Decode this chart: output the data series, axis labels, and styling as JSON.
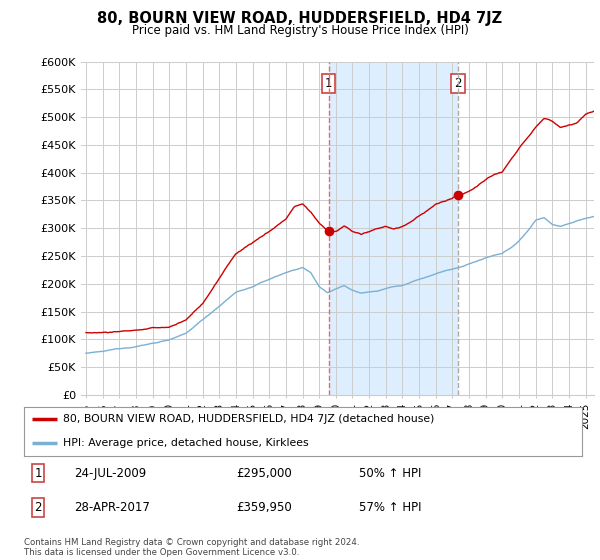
{
  "title": "80, BOURN VIEW ROAD, HUDDERSFIELD, HD4 7JZ",
  "subtitle": "Price paid vs. HM Land Registry's House Price Index (HPI)",
  "ylabel_ticks": [
    "£0",
    "£50K",
    "£100K",
    "£150K",
    "£200K",
    "£250K",
    "£300K",
    "£350K",
    "£400K",
    "£450K",
    "£500K",
    "£550K",
    "£600K"
  ],
  "ytick_values": [
    0,
    50000,
    100000,
    150000,
    200000,
    250000,
    300000,
    350000,
    400000,
    450000,
    500000,
    550000,
    600000
  ],
  "ylim": [
    0,
    600000
  ],
  "xlim_start": 1994.7,
  "xlim_end": 2025.5,
  "transaction1_date": 2009.56,
  "transaction1_price": 295000,
  "transaction2_date": 2017.33,
  "transaction2_price": 359950,
  "legend_line1": "80, BOURN VIEW ROAD, HUDDERSFIELD, HD4 7JZ (detached house)",
  "legend_line2": "HPI: Average price, detached house, Kirklees",
  "footer": "Contains HM Land Registry data © Crown copyright and database right 2024.\nThis data is licensed under the Open Government Licence v3.0.",
  "line_color_red": "#cc0000",
  "line_color_blue": "#7ab0d4",
  "shade_color": "#ddeeff",
  "background_color": "#ffffff",
  "grid_color": "#cccccc",
  "transaction1_vline_color": "#ee6666",
  "transaction2_vline_color": "#aaaaaa"
}
